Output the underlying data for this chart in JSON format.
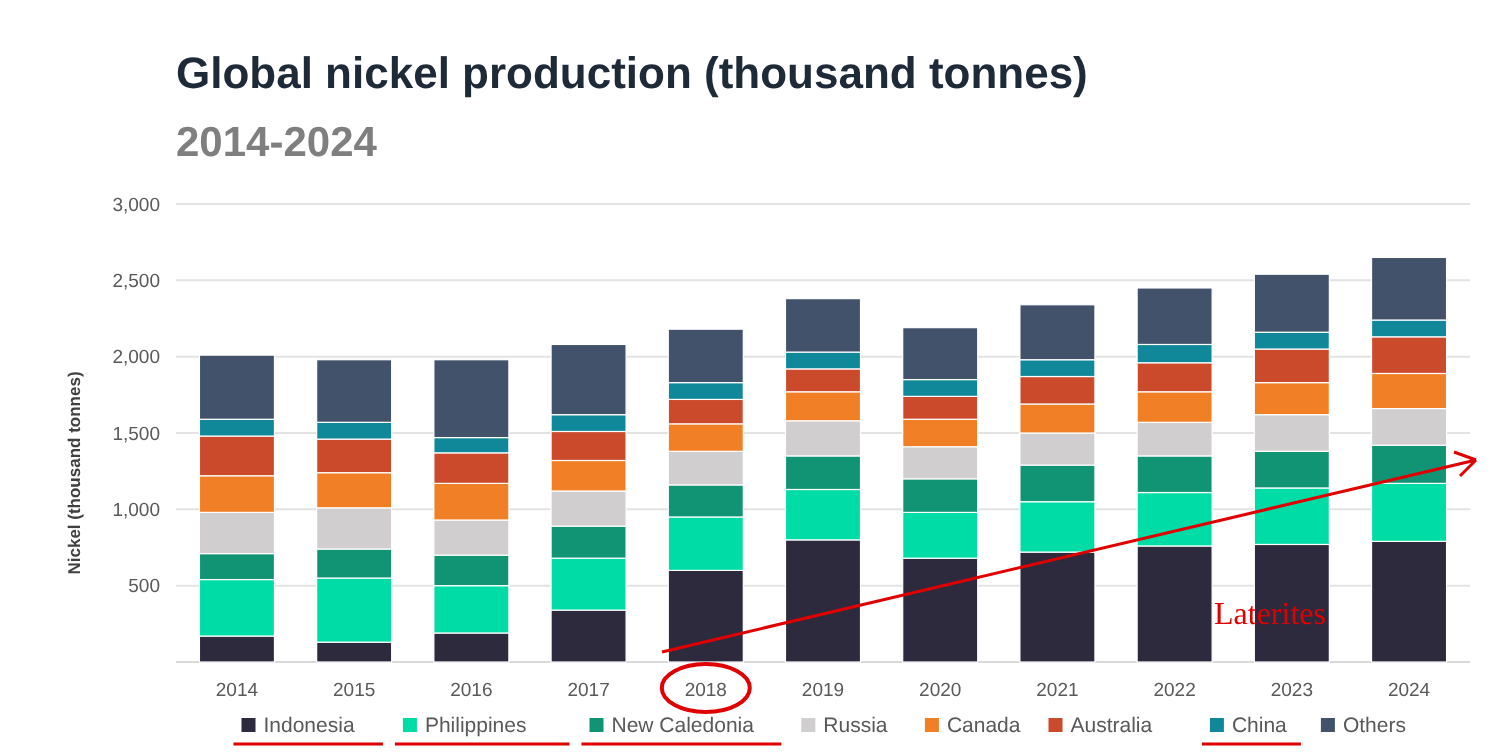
{
  "chart_data": {
    "type": "bar",
    "stacked": true,
    "title": "Global nickel production (thousand tonnes)",
    "subtitle": "2014-2024",
    "ylabel": "Nickel (thousand tonnes)",
    "categories": [
      "2014",
      "2015",
      "2016",
      "2017",
      "2018",
      "2019",
      "2020",
      "2021",
      "2022",
      "2023",
      "2024"
    ],
    "series": [
      {
        "name": "Indonesia",
        "color": "#2d2a3e",
        "values": [
          170,
          130,
          190,
          340,
          600,
          800,
          680,
          720,
          760,
          770,
          790
        ]
      },
      {
        "name": "Philippines",
        "color": "#00dca5",
        "values": [
          370,
          420,
          310,
          340,
          350,
          330,
          300,
          330,
          350,
          370,
          380
        ]
      },
      {
        "name": "New Caledonia",
        "color": "#119474",
        "values": [
          170,
          190,
          200,
          210,
          210,
          220,
          220,
          240,
          240,
          240,
          250
        ]
      },
      {
        "name": "Russia",
        "color": "#d0cece",
        "values": [
          270,
          270,
          230,
          230,
          220,
          230,
          210,
          210,
          220,
          240,
          240
        ]
      },
      {
        "name": "Canada",
        "color": "#f07f26",
        "values": [
          240,
          230,
          240,
          200,
          180,
          190,
          180,
          190,
          200,
          210,
          230
        ]
      },
      {
        "name": "Australia",
        "color": "#cb4a2c",
        "values": [
          260,
          220,
          200,
          190,
          160,
          150,
          150,
          180,
          190,
          220,
          240
        ]
      },
      {
        "name": "China",
        "color": "#11889a",
        "values": [
          110,
          110,
          100,
          110,
          110,
          110,
          110,
          110,
          120,
          110,
          110
        ]
      },
      {
        "name": "Others",
        "color": "#42526a",
        "values": [
          420,
          410,
          510,
          460,
          350,
          350,
          340,
          360,
          370,
          380,
          410
        ]
      }
    ],
    "ylim": [
      0,
      3000
    ],
    "yticks": [
      {
        "value": 0,
        "label": null
      },
      {
        "value": 500,
        "label": "500"
      },
      {
        "value": 1000,
        "label": "1,000"
      },
      {
        "value": 1500,
        "label": "1,500"
      },
      {
        "value": 2000,
        "label": "2,000"
      },
      {
        "value": 2500,
        "label": "2,500"
      },
      {
        "value": 3000,
        "label": "3,000"
      }
    ],
    "grid": "y",
    "legend": "bottom",
    "annotations": [
      "Laterites"
    ]
  }
}
